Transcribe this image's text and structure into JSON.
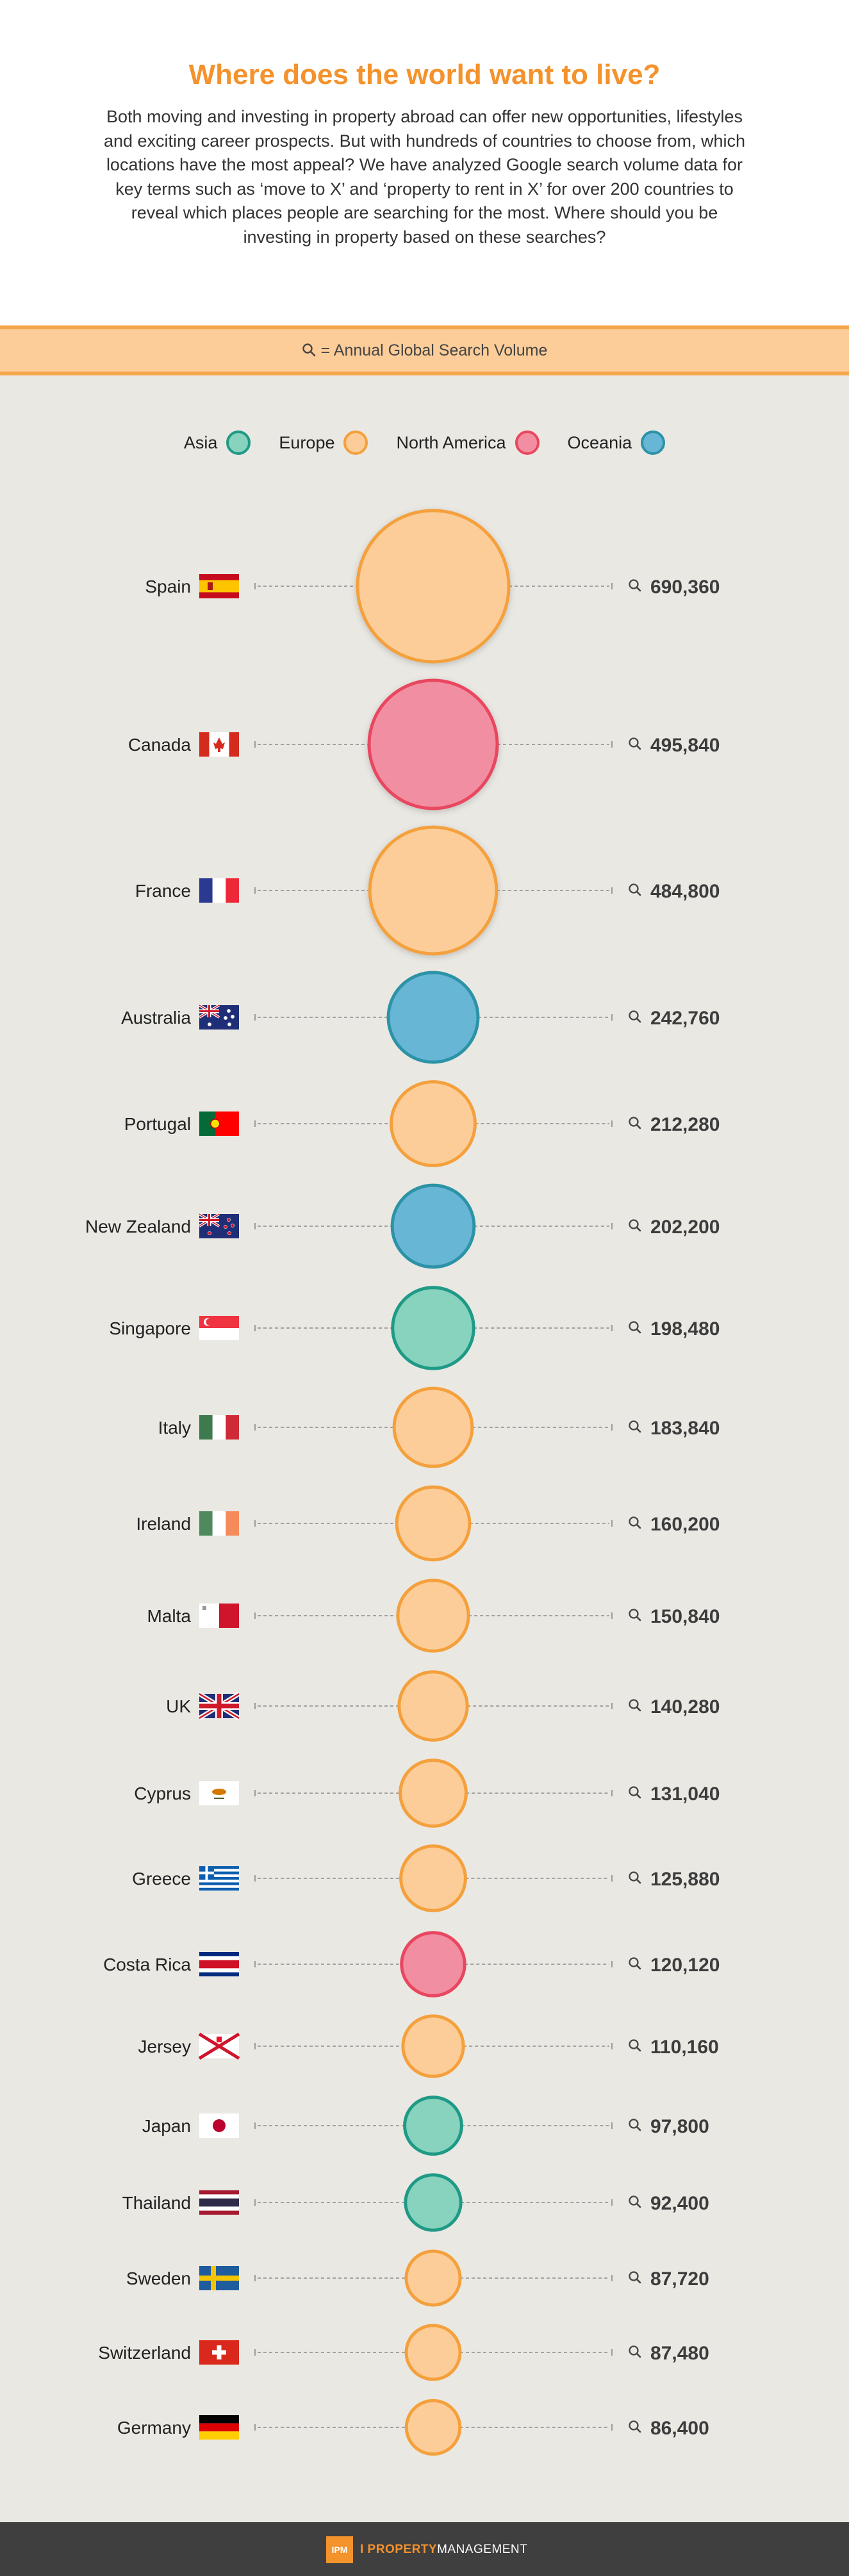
{
  "header": {
    "title": "Where does the world want to live?",
    "intro": "Both moving and investing in property abroad can offer new opportunities, lifestyles and exciting career prospects. But with hundreds of countries to choose from, which locations have the most appeal? We have analyzed Google search volume data for key terms such as ‘move to X’ and ‘property to rent in X’ for over 200 countries to reveal which places people are searching for the most. Where should you be investing in property based on these searches?"
  },
  "key": {
    "icon": "search-icon",
    "text": "= Annual Global Search Volume"
  },
  "legend": [
    {
      "label": "Asia",
      "fill": "#87d3bd",
      "stroke": "#1f9a86"
    },
    {
      "label": "Europe",
      "fill": "#fccd98",
      "stroke": "#f4a03c"
    },
    {
      "label": "North America",
      "fill": "#f28ea2",
      "stroke": "#e8475f"
    },
    {
      "label": "Oceania",
      "fill": "#67b6d6",
      "stroke": "#2c93a6"
    }
  ],
  "chart_data": {
    "type": "bubble",
    "value_icon": "search-icon",
    "categories": [
      "Spain",
      "Canada",
      "France",
      "Australia",
      "Portugal",
      "New Zealand",
      "Singapore",
      "Italy",
      "Ireland",
      "Malta",
      "UK",
      "Cyprus",
      "Greece",
      "Costa Rica",
      "Jersey",
      "Japan",
      "Thailand",
      "Sweden",
      "Switzerland",
      "Germany"
    ],
    "regions": [
      "Europe",
      "North America",
      "Europe",
      "Oceania",
      "Europe",
      "Oceania",
      "Asia",
      "Europe",
      "Europe",
      "Europe",
      "Europe",
      "Europe",
      "Europe",
      "North America",
      "Europe",
      "Asia",
      "Asia",
      "Europe",
      "Europe",
      "Europe"
    ],
    "values": [
      690360,
      495840,
      484800,
      242760,
      212280,
      202200,
      198480,
      183840,
      160200,
      150840,
      140280,
      131040,
      125880,
      120120,
      110160,
      97800,
      92400,
      87720,
      87480,
      86400
    ],
    "value_labels": [
      "690,360",
      "495,840",
      "484,800",
      "242,760",
      "212,280",
      "202,200",
      "198,480",
      "183,840",
      "160,200",
      "150,840",
      "140,280",
      "131,040",
      "125,880",
      "120,120",
      "110,160",
      "97,800",
      "92,400",
      "87,720",
      "87,480",
      "86,400"
    ],
    "flags": [
      "spain-flag",
      "canada-flag",
      "france-flag",
      "australia-flag",
      "portugal-flag",
      "new-zealand-flag",
      "singapore-flag",
      "italy-flag",
      "ireland-flag",
      "malta-flag",
      "uk-flag",
      "cyprus-flag",
      "greece-flag",
      "costa-rica-flag",
      "jersey-flag",
      "japan-flag",
      "thailand-flag",
      "sweden-flag",
      "switzerland-flag",
      "germany-flag"
    ]
  },
  "footer": {
    "logo": "IPM",
    "brand_a": "I PROPERTY",
    "brand_b": "MANAGEMENT"
  }
}
